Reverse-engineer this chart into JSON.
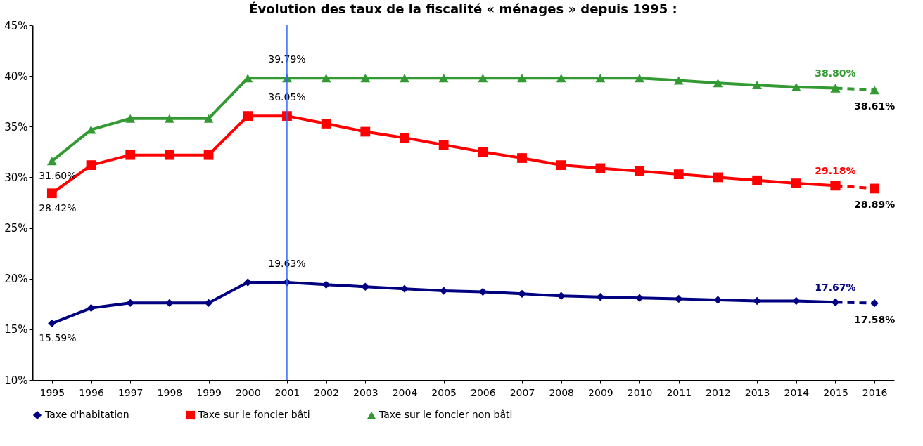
{
  "chart_data": {
    "type": "line",
    "title": "Évolution des taux de la fiscalité « ménages » depuis 1995 :",
    "categories": [
      "1995",
      "1996",
      "1997",
      "1998",
      "1999",
      "2000",
      "2001",
      "2002",
      "2003",
      "2004",
      "2005",
      "2006",
      "2007",
      "2008",
      "2009",
      "2010",
      "2011",
      "2012",
      "2013",
      "2014",
      "2015",
      "2016"
    ],
    "ylim": [
      10,
      45
    ],
    "yticks": [
      {
        "value": 10,
        "label": "10%"
      },
      {
        "value": 15,
        "label": "15%"
      },
      {
        "value": 20,
        "label": "20%"
      },
      {
        "value": 25,
        "label": "25%"
      },
      {
        "value": 30,
        "label": "30%"
      },
      {
        "value": 35,
        "label": "35%"
      },
      {
        "value": 40,
        "label": "40%"
      },
      {
        "value": 45,
        "label": "45%"
      }
    ],
    "grid": false,
    "legend": "bottom",
    "line_style": "solid",
    "ref_lines": [
      {
        "axis": "x",
        "value": "2001",
        "label": null,
        "color": "#3366ff"
      }
    ],
    "series": [
      {
        "name": "Taxe d'habitation",
        "color": "#000080",
        "marker": "diamond",
        "values": [
          15.59,
          17.1,
          17.6,
          17.6,
          17.6,
          19.63,
          19.63,
          19.4,
          19.2,
          19.0,
          18.8,
          18.7,
          18.5,
          18.3,
          18.2,
          18.1,
          18.0,
          17.9,
          17.8,
          17.8,
          17.67,
          null
        ],
        "value_labels": [
          "15.59%",
          null,
          null,
          null,
          null,
          null,
          "19.63%",
          null,
          null,
          null,
          null,
          null,
          null,
          null,
          null,
          null,
          null,
          null,
          null,
          null,
          null,
          null
        ]
      },
      {
        "name": "Taxe sur le foncier bâti",
        "color": "#ff0000",
        "marker": "square",
        "values": [
          28.42,
          31.2,
          32.2,
          32.2,
          32.2,
          36.05,
          36.05,
          35.3,
          34.5,
          33.9,
          33.2,
          32.5,
          31.9,
          31.2,
          30.9,
          30.6,
          30.3,
          30.0,
          29.7,
          29.4,
          29.18,
          null
        ],
        "value_labels": [
          "28.42%",
          null,
          null,
          null,
          null,
          null,
          "36.05%",
          null,
          null,
          null,
          null,
          null,
          null,
          null,
          null,
          null,
          null,
          null,
          null,
          null,
          null,
          null
        ]
      },
      {
        "name": "Taxe sur le foncier non bâti",
        "color": "#339933",
        "marker": "triangle",
        "values": [
          31.6,
          34.7,
          35.8,
          35.8,
          35.8,
          39.79,
          39.79,
          39.79,
          39.79,
          39.79,
          39.79,
          39.79,
          39.79,
          39.79,
          39.79,
          39.79,
          39.56,
          39.3,
          39.1,
          38.9,
          38.8,
          null
        ],
        "value_labels": [
          "31.60%",
          null,
          null,
          null,
          null,
          null,
          "39.79%",
          null,
          null,
          null,
          null,
          null,
          null,
          null,
          null,
          null,
          null,
          null,
          null,
          null,
          null,
          null
        ]
      },
      {
        "color": "#000080",
        "marker": "diamond",
        "line_style": "dashed",
        "values": [
          null,
          null,
          null,
          null,
          null,
          null,
          null,
          null,
          null,
          null,
          null,
          null,
          null,
          null,
          null,
          null,
          null,
          null,
          null,
          null,
          17.67,
          17.58
        ],
        "value_labels": [
          null,
          null,
          null,
          null,
          null,
          null,
          null,
          null,
          null,
          null,
          null,
          null,
          null,
          null,
          null,
          null,
          null,
          null,
          null,
          null,
          "17.67%",
          "17.58%"
        ]
      },
      {
        "color": "#ff0000",
        "marker": "square",
        "line_style": "dashed",
        "values": [
          null,
          null,
          null,
          null,
          null,
          null,
          null,
          null,
          null,
          null,
          null,
          null,
          null,
          null,
          null,
          null,
          null,
          null,
          null,
          null,
          29.18,
          28.89
        ],
        "value_labels": [
          null,
          null,
          null,
          null,
          null,
          null,
          null,
          null,
          null,
          null,
          null,
          null,
          null,
          null,
          null,
          null,
          null,
          null,
          null,
          null,
          "29.18%",
          "28.89%"
        ]
      },
      {
        "color": "#339933",
        "marker": "triangle",
        "line_style": "dashed",
        "values": [
          null,
          null,
          null,
          null,
          null,
          null,
          null,
          null,
          null,
          null,
          null,
          null,
          null,
          null,
          null,
          null,
          null,
          null,
          null,
          null,
          38.8,
          38.61
        ],
        "value_labels": [
          null,
          null,
          null,
          null,
          null,
          null,
          null,
          null,
          null,
          null,
          null,
          null,
          null,
          null,
          null,
          null,
          null,
          null,
          null,
          null,
          "38.80%",
          "38.61%"
        ]
      }
    ]
  }
}
